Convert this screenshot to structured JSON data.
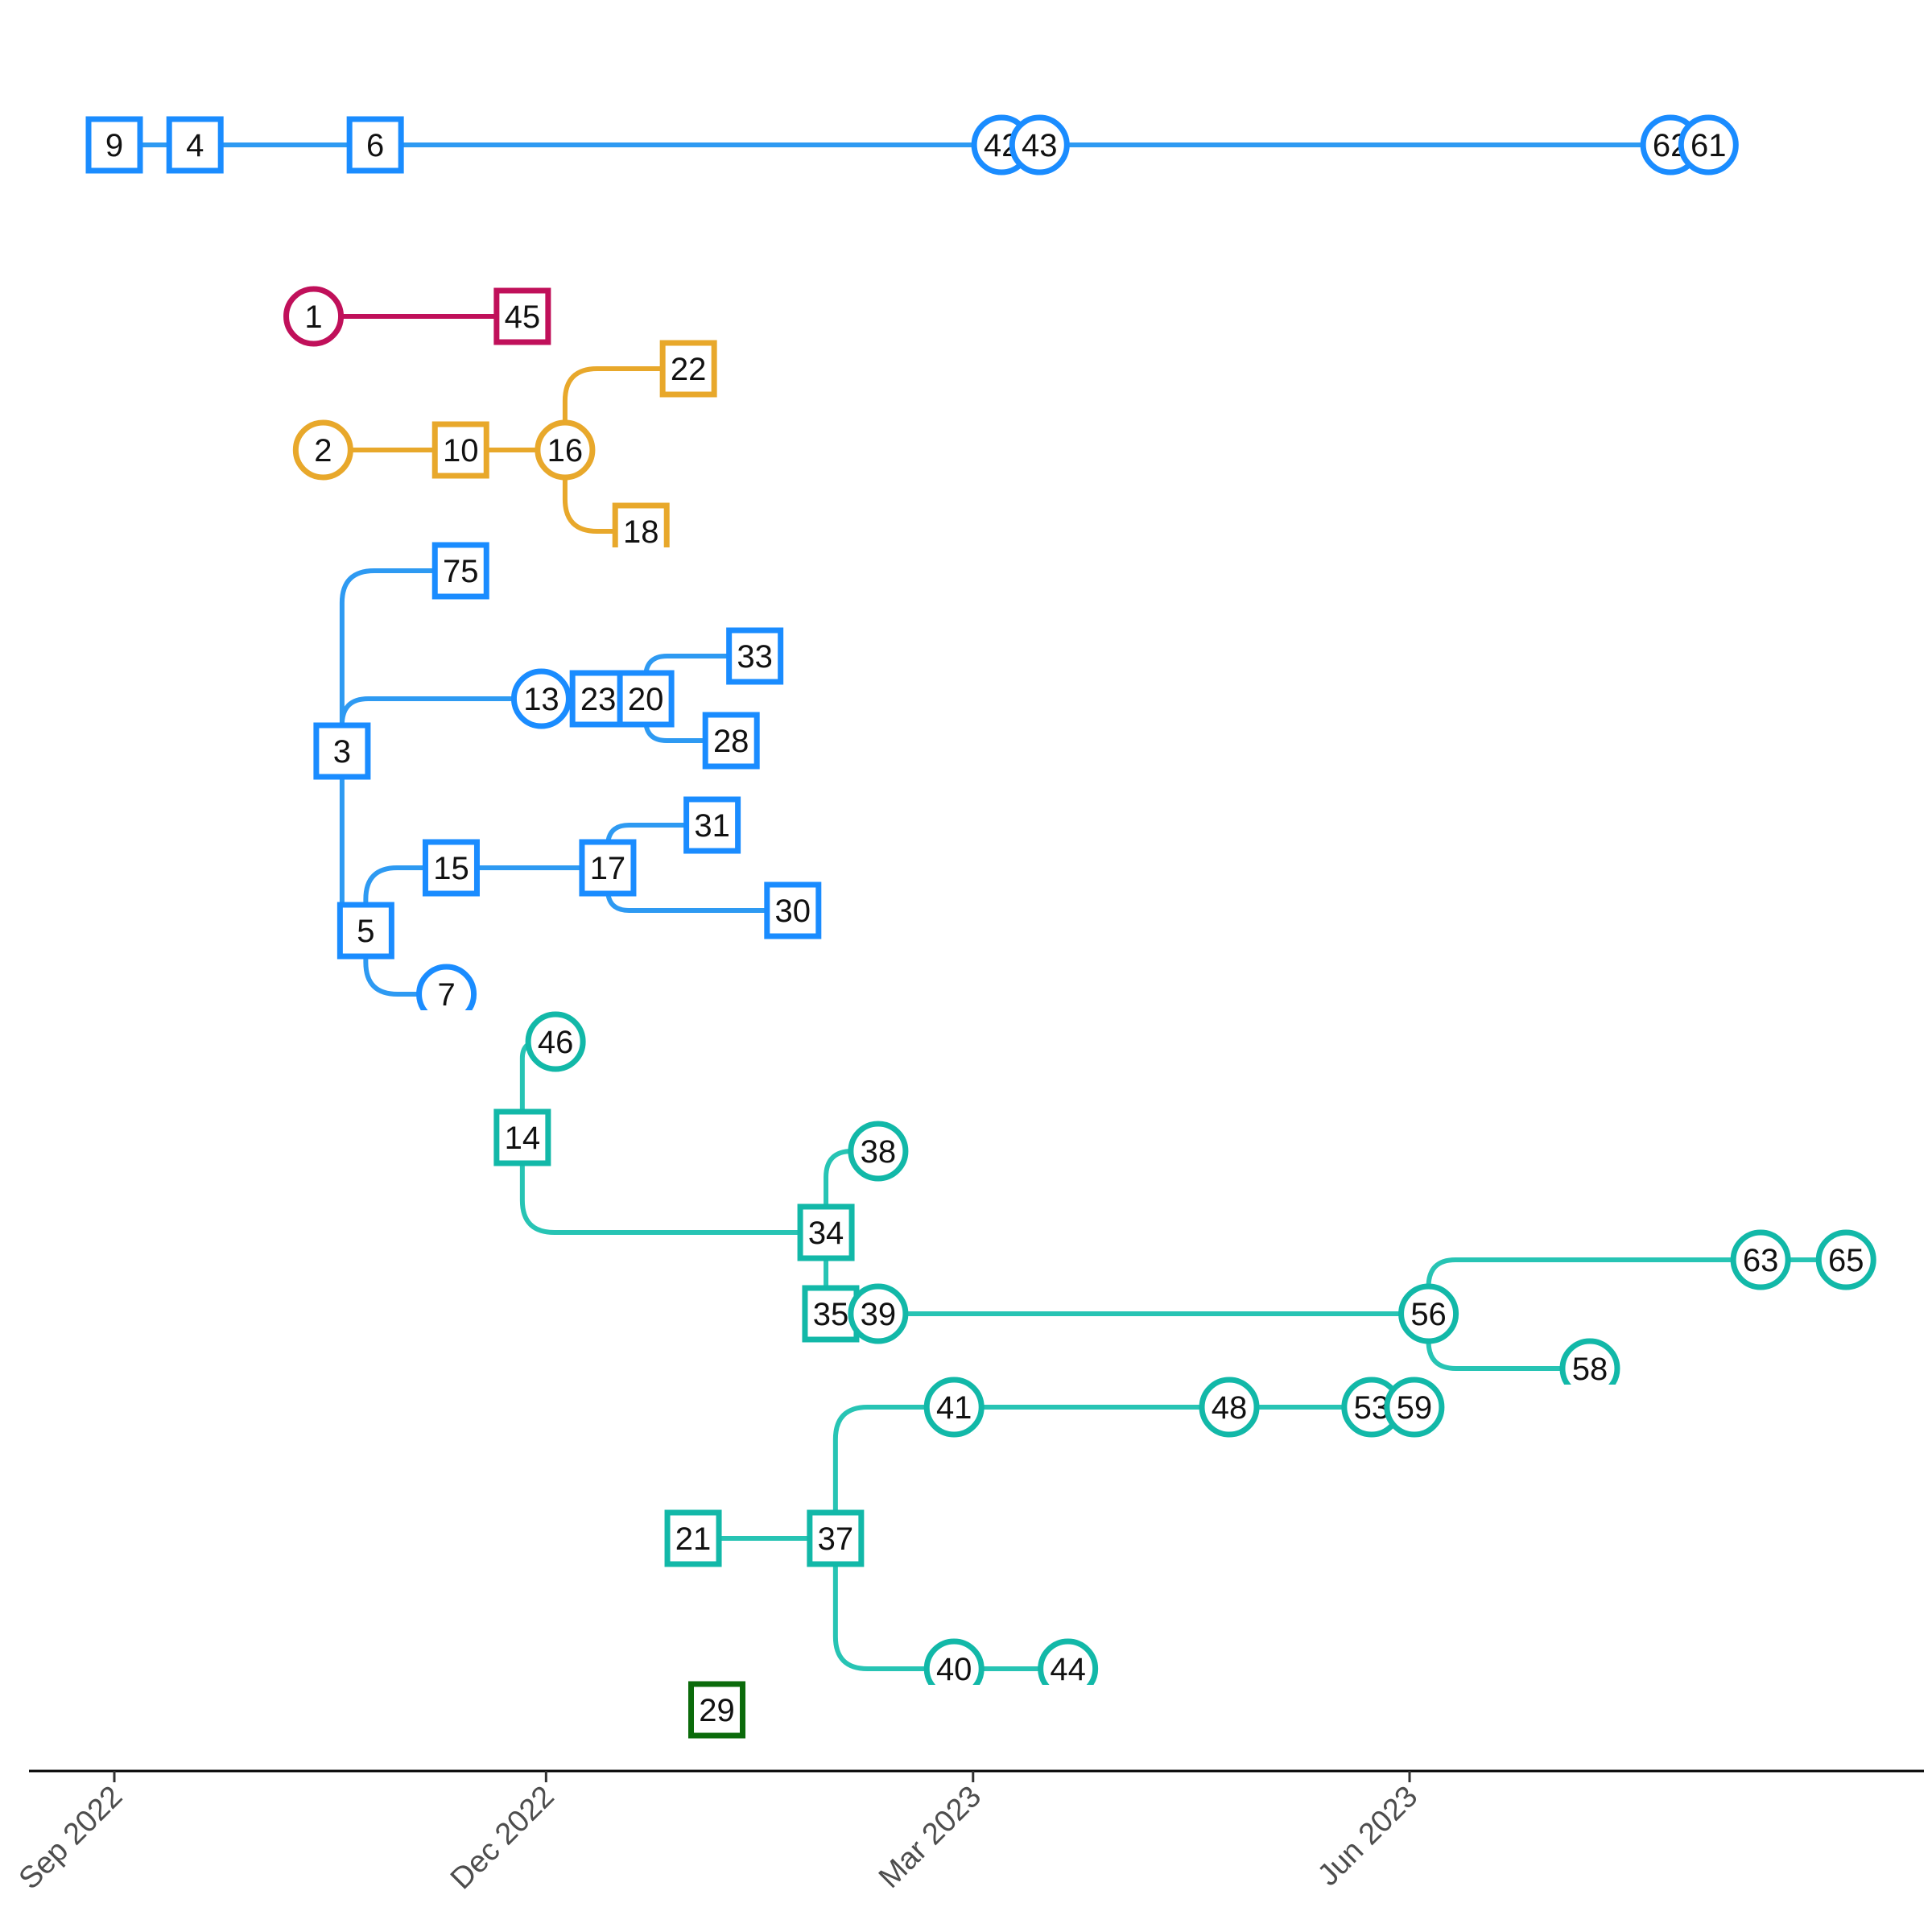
{
  "chart_data": {
    "type": "transmission-tree",
    "x_axis": {
      "type": "date",
      "ticks": [
        {
          "date": "2022-09-01",
          "label": "Sep 2022"
        },
        {
          "date": "2022-12-01",
          "label": "Dec 2022"
        },
        {
          "date": "2023-03-01",
          "label": "Mar 2023"
        },
        {
          "date": "2023-06-01",
          "label": "Jun 2023"
        }
      ],
      "range": [
        "2022-08-14",
        "2023-09-25"
      ]
    },
    "colors": {
      "blue": "#1a8cff",
      "blue_edge": "#2e9af2",
      "crimson": "#c0105a",
      "orange": "#e8a82b",
      "teal": "#12b8a8",
      "teal_edge": "#27c4b4",
      "green": "#0b6b0b"
    },
    "nodes": [
      {
        "id": "9",
        "date": "2022-09-01",
        "shape": "square",
        "color": "blue"
      },
      {
        "id": "4",
        "date": "2022-09-18",
        "shape": "square",
        "color": "blue"
      },
      {
        "id": "6",
        "date": "2022-10-26",
        "shape": "square",
        "color": "blue"
      },
      {
        "id": "42",
        "date": "2023-03-07",
        "shape": "circle",
        "color": "blue"
      },
      {
        "id": "43",
        "date": "2023-03-15",
        "shape": "circle",
        "color": "blue"
      },
      {
        "id": "62",
        "date": "2023-07-26",
        "shape": "circle",
        "color": "blue"
      },
      {
        "id": "61",
        "date": "2023-08-03",
        "shape": "circle",
        "color": "blue"
      },
      {
        "id": "1",
        "date": "2022-10-13",
        "shape": "circle",
        "color": "crimson"
      },
      {
        "id": "45",
        "date": "2022-11-26",
        "shape": "square",
        "color": "crimson"
      },
      {
        "id": "2",
        "date": "2022-10-15",
        "shape": "circle",
        "color": "orange"
      },
      {
        "id": "10",
        "date": "2022-11-13",
        "shape": "square",
        "color": "orange"
      },
      {
        "id": "16",
        "date": "2022-12-05",
        "shape": "circle",
        "color": "orange"
      },
      {
        "id": "22",
        "date": "2022-12-31",
        "shape": "square",
        "color": "orange"
      },
      {
        "id": "18",
        "date": "2022-12-21",
        "shape": "square",
        "color": "orange"
      },
      {
        "id": "75",
        "date": "2022-11-13",
        "shape": "square",
        "color": "blue"
      },
      {
        "id": "13",
        "date": "2022-11-30",
        "shape": "circle",
        "color": "blue"
      },
      {
        "id": "23",
        "date": "2022-12-12",
        "shape": "square",
        "color": "blue"
      },
      {
        "id": "20",
        "date": "2022-12-22",
        "shape": "square",
        "color": "blue"
      },
      {
        "id": "33",
        "date": "2023-01-14",
        "shape": "square",
        "color": "blue"
      },
      {
        "id": "28",
        "date": "2023-01-09",
        "shape": "square",
        "color": "blue"
      },
      {
        "id": "3",
        "date": "2022-10-19",
        "shape": "square",
        "color": "blue"
      },
      {
        "id": "15",
        "date": "2022-11-11",
        "shape": "square",
        "color": "blue"
      },
      {
        "id": "17",
        "date": "2022-12-14",
        "shape": "square",
        "color": "blue"
      },
      {
        "id": "31",
        "date": "2023-01-05",
        "shape": "square",
        "color": "blue"
      },
      {
        "id": "30",
        "date": "2023-01-22",
        "shape": "square",
        "color": "blue"
      },
      {
        "id": "5",
        "date": "2022-10-24",
        "shape": "square",
        "color": "blue"
      },
      {
        "id": "7",
        "date": "2022-11-10",
        "shape": "circle",
        "color": "blue"
      },
      {
        "id": "46",
        "date": "2022-12-03",
        "shape": "circle",
        "color": "teal"
      },
      {
        "id": "14",
        "date": "2022-11-26",
        "shape": "square",
        "color": "teal"
      },
      {
        "id": "38",
        "date": "2023-02-09",
        "shape": "circle",
        "color": "teal"
      },
      {
        "id": "34",
        "date": "2023-01-29",
        "shape": "square",
        "color": "teal"
      },
      {
        "id": "35",
        "date": "2023-01-30",
        "shape": "square",
        "color": "teal"
      },
      {
        "id": "39",
        "date": "2023-02-09",
        "shape": "circle",
        "color": "teal"
      },
      {
        "id": "56",
        "date": "2023-06-05",
        "shape": "circle",
        "color": "teal"
      },
      {
        "id": "63",
        "date": "2023-08-14",
        "shape": "circle",
        "color": "teal"
      },
      {
        "id": "65",
        "date": "2023-09-01",
        "shape": "circle",
        "color": "teal"
      },
      {
        "id": "58",
        "date": "2023-07-09",
        "shape": "circle",
        "color": "teal"
      },
      {
        "id": "41",
        "date": "2023-02-25",
        "shape": "circle",
        "color": "teal"
      },
      {
        "id": "48",
        "date": "2023-04-24",
        "shape": "circle",
        "color": "teal"
      },
      {
        "id": "53",
        "date": "2023-05-24",
        "shape": "circle",
        "color": "teal"
      },
      {
        "id": "59",
        "date": "2023-06-02",
        "shape": "circle",
        "color": "teal"
      },
      {
        "id": "21",
        "date": "2023-01-01",
        "shape": "square",
        "color": "teal"
      },
      {
        "id": "37",
        "date": "2023-01-31",
        "shape": "square",
        "color": "teal"
      },
      {
        "id": "40",
        "date": "2023-02-25",
        "shape": "circle",
        "color": "teal"
      },
      {
        "id": "44",
        "date": "2023-03-21",
        "shape": "circle",
        "color": "teal"
      },
      {
        "id": "29",
        "date": "2023-01-06",
        "shape": "square",
        "color": "green"
      }
    ],
    "edges": [
      {
        "from": "9",
        "to": "4",
        "color": "blue"
      },
      {
        "from": "4",
        "to": "6",
        "color": "blue"
      },
      {
        "from": "6",
        "to": "42",
        "color": "blue"
      },
      {
        "from": "42",
        "to": "43",
        "color": "blue"
      },
      {
        "from": "43",
        "to": "62",
        "color": "blue"
      },
      {
        "from": "62",
        "to": "61",
        "color": "blue"
      },
      {
        "from": "1",
        "to": "45",
        "color": "crimson"
      },
      {
        "from": "2",
        "to": "10",
        "color": "orange"
      },
      {
        "from": "10",
        "to": "16",
        "color": "orange"
      },
      {
        "from": "16",
        "to": "22",
        "color": "orange"
      },
      {
        "from": "16",
        "to": "18",
        "color": "orange"
      },
      {
        "from": "3",
        "to": "75",
        "color": "blue"
      },
      {
        "from": "3",
        "to": "13",
        "color": "blue"
      },
      {
        "from": "13",
        "to": "23",
        "color": "blue"
      },
      {
        "from": "23",
        "to": "20",
        "color": "blue"
      },
      {
        "from": "20",
        "to": "33",
        "color": "blue"
      },
      {
        "from": "20",
        "to": "28",
        "color": "blue"
      },
      {
        "from": "3",
        "to": "5",
        "color": "blue"
      },
      {
        "from": "5",
        "to": "15",
        "color": "blue"
      },
      {
        "from": "15",
        "to": "17",
        "color": "blue"
      },
      {
        "from": "17",
        "to": "31",
        "color": "blue"
      },
      {
        "from": "17",
        "to": "30",
        "color": "blue"
      },
      {
        "from": "5",
        "to": "7",
        "color": "blue"
      },
      {
        "from": "14",
        "to": "46",
        "color": "teal"
      },
      {
        "from": "14",
        "to": "34",
        "color": "teal"
      },
      {
        "from": "34",
        "to": "38",
        "color": "teal"
      },
      {
        "from": "34",
        "to": "35",
        "color": "teal"
      },
      {
        "from": "35",
        "to": "39",
        "color": "teal"
      },
      {
        "from": "39",
        "to": "56",
        "color": "teal"
      },
      {
        "from": "56",
        "to": "63",
        "color": "teal"
      },
      {
        "from": "63",
        "to": "65",
        "color": "teal"
      },
      {
        "from": "56",
        "to": "58",
        "color": "teal"
      },
      {
        "from": "21",
        "to": "37",
        "color": "teal"
      },
      {
        "from": "37",
        "to": "41",
        "color": "teal"
      },
      {
        "from": "41",
        "to": "48",
        "color": "teal"
      },
      {
        "from": "48",
        "to": "53",
        "color": "teal"
      },
      {
        "from": "53",
        "to": "59",
        "color": "teal"
      },
      {
        "from": "37",
        "to": "40",
        "color": "teal"
      },
      {
        "from": "40",
        "to": "44",
        "color": "teal"
      }
    ]
  }
}
